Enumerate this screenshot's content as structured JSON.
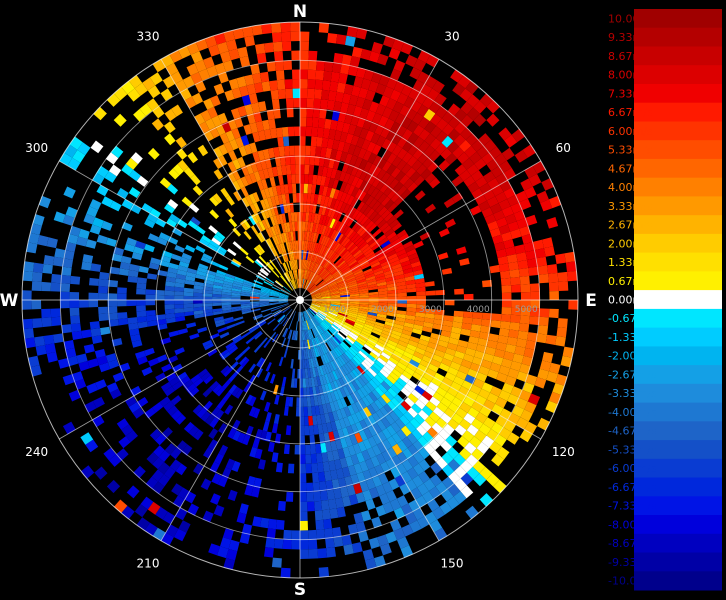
{
  "chart_data": {
    "type": "heatmap",
    "title": "",
    "projection": "polar (plan position indicator)",
    "unit": "m/s",
    "compass_labels": [
      "N",
      "E",
      "S",
      "W"
    ],
    "azimuth_ticks": [
      30,
      60,
      120,
      150,
      210,
      240,
      300,
      330
    ],
    "range_ticks": [
      1000,
      2000,
      3000,
      4000,
      5000
    ],
    "range_max": 5800,
    "colorbar": {
      "min": -10.0,
      "max": 10.0,
      "levels": [
        {
          "label": "10.00m/s",
          "color": "#a00000"
        },
        {
          "label": "9.33m/s",
          "color": "#b40000"
        },
        {
          "label": "8.67m/s",
          "color": "#c80000"
        },
        {
          "label": "8.00m/s",
          "color": "#dc0000"
        },
        {
          "label": "7.33m/s",
          "color": "#f00000"
        },
        {
          "label": "6.67m/s",
          "color": "#ff1a00"
        },
        {
          "label": "6.00m/s",
          "color": "#ff3300"
        },
        {
          "label": "5.33m/s",
          "color": "#ff4d00"
        },
        {
          "label": "4.67m/s",
          "color": "#ff6600"
        },
        {
          "label": "4.00m/s",
          "color": "#ff8000"
        },
        {
          "label": "3.33m/s",
          "color": "#ff9900"
        },
        {
          "label": "2.67m/s",
          "color": "#ffb300"
        },
        {
          "label": "2.00m/s",
          "color": "#ffcc00"
        },
        {
          "label": "1.33m/s",
          "color": "#ffe000"
        },
        {
          "label": "0.67m/s",
          "color": "#fff000"
        },
        {
          "label": "0.00m/s",
          "color": "#ffffff"
        },
        {
          "label": "-0.67m/s",
          "color": "#00e6ff"
        },
        {
          "label": "-1.33m/s",
          "color": "#00ccff"
        },
        {
          "label": "-2.00m/s",
          "color": "#00b4f0"
        },
        {
          "label": "-2.67m/s",
          "color": "#14a0e6"
        },
        {
          "label": "-3.33m/s",
          "color": "#1e8cdc"
        },
        {
          "label": "-4.00m/s",
          "color": "#1e78d2"
        },
        {
          "label": "-4.67m/s",
          "color": "#1e64c8"
        },
        {
          "label": "-5.33m/s",
          "color": "#1450c8"
        },
        {
          "label": "-6.00m/s",
          "color": "#0a3cd2"
        },
        {
          "label": "-6.67m/s",
          "color": "#0028dc"
        },
        {
          "label": "-7.33m/s",
          "color": "#0014e6"
        },
        {
          "label": "-8.00m/s",
          "color": "#0000dc"
        },
        {
          "label": "-8.67m/s",
          "color": "#0000c0"
        },
        {
          "label": "-9.33m/s",
          "color": "#0000a6"
        },
        {
          "label": "-10.00m/s",
          "color": "#00008c"
        }
      ]
    }
  }
}
